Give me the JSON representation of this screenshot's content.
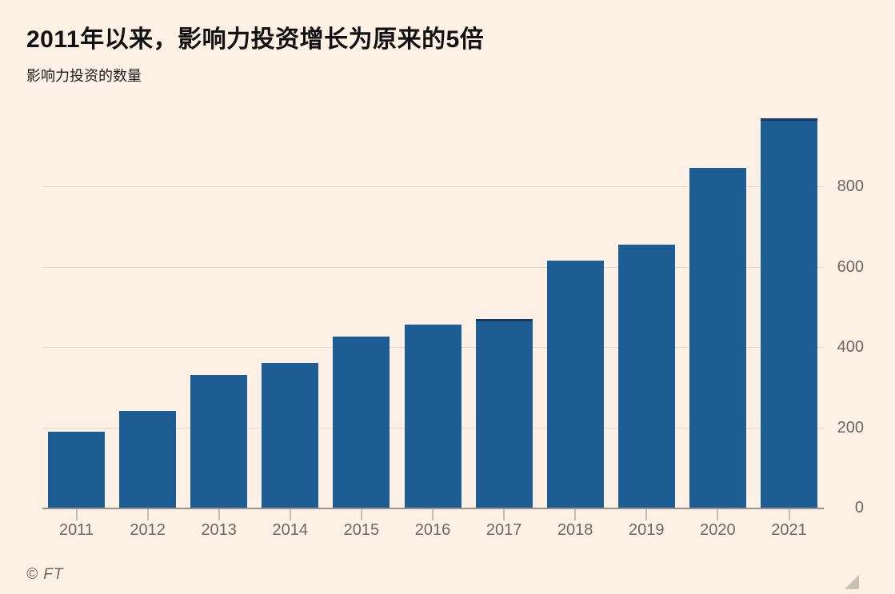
{
  "header": {
    "title": "2011年以来，影响力投资增长为原来的5倍",
    "subtitle": "影响力投资的数量"
  },
  "footer": {
    "credit": "© FT"
  },
  "colors": {
    "background": "#fdf0e4",
    "bar": "#1e5c94",
    "bar_cap": "#16395e",
    "gridline": "#e6dacc",
    "axis_line": "#9a938b",
    "axis_text": "#6e6660",
    "title_text": "#121212"
  },
  "chart_data": {
    "type": "bar",
    "title": "2011年以来，影响力投资增长为原来的5倍",
    "subtitle": "影响力投资的数量",
    "xlabel": "",
    "ylabel": "影响力投资的数量",
    "categories": [
      "2011",
      "2012",
      "2013",
      "2014",
      "2015",
      "2016",
      "2017",
      "2018",
      "2019",
      "2020",
      "2021"
    ],
    "values": [
      190,
      240,
      330,
      360,
      425,
      455,
      470,
      615,
      655,
      845,
      970
    ],
    "yticks": [
      0,
      200,
      400,
      600,
      800
    ],
    "ylim": [
      0,
      1000
    ],
    "grid": true,
    "legend": "none",
    "ytick_side": "right",
    "bar_color": "#1e5c94",
    "cap_years": [
      "2017",
      "2021"
    ]
  }
}
